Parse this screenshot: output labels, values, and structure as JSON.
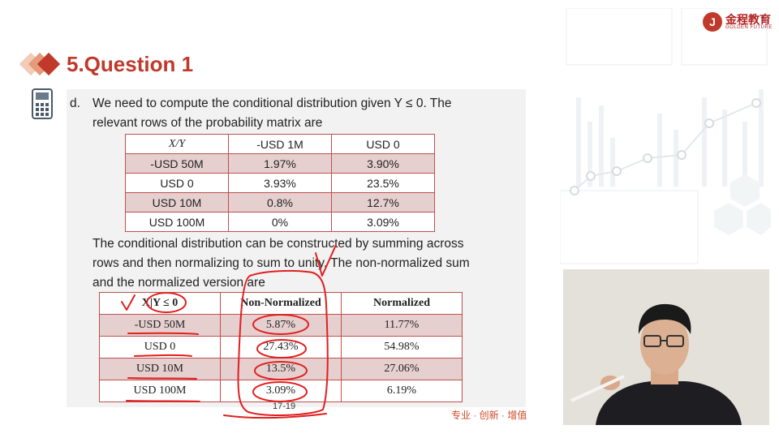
{
  "header": {
    "title": "5.Question 1"
  },
  "logo": {
    "mark": "J",
    "cn": "金程教育",
    "en": "GOLDEN FUTURE"
  },
  "content": {
    "item_label": "d.",
    "intro_line1": "We need to compute the conditional distribution given Y ≤ 0. The",
    "intro_line2": "relevant rows of the probability matrix are",
    "table1": {
      "headers": [
        "X/Y",
        "-USD 1M",
        "USD 0"
      ],
      "rows": [
        [
          "-USD 50M",
          "1.97%",
          "3.90%"
        ],
        [
          "USD 0",
          "3.93%",
          "23.5%"
        ],
        [
          "USD 10M",
          "0.8%",
          "12.7%"
        ],
        [
          "USD 100M",
          "0%",
          "3.09%"
        ]
      ]
    },
    "para2_line1": "The conditional distribution can be constructed by summing across",
    "para2_line2": "rows and then normalizing to sum to unity. The non-normalized sum",
    "para2_line3": "and the normalized version are",
    "table2": {
      "headers": [
        "X|Y ≤ 0",
        "Non-Normalized",
        "Normalized"
      ],
      "rows": [
        [
          "-USD 50M",
          "5.87%",
          "11.77%"
        ],
        [
          "USD 0",
          "27.43%",
          "54.98%"
        ],
        [
          "USD 10M",
          "13.5%",
          "27.06%"
        ],
        [
          "USD 100M",
          "3.09%",
          "6.19%"
        ]
      ]
    },
    "page_number": "17-19"
  },
  "footer": {
    "slogan": "专业 · 创新 · 增值"
  },
  "colors": {
    "accent": "#c0392b",
    "ink": "#e02020",
    "row_shade": "#e6cfcf"
  },
  "icons": [
    "calculator-icon",
    "logo-icon"
  ]
}
